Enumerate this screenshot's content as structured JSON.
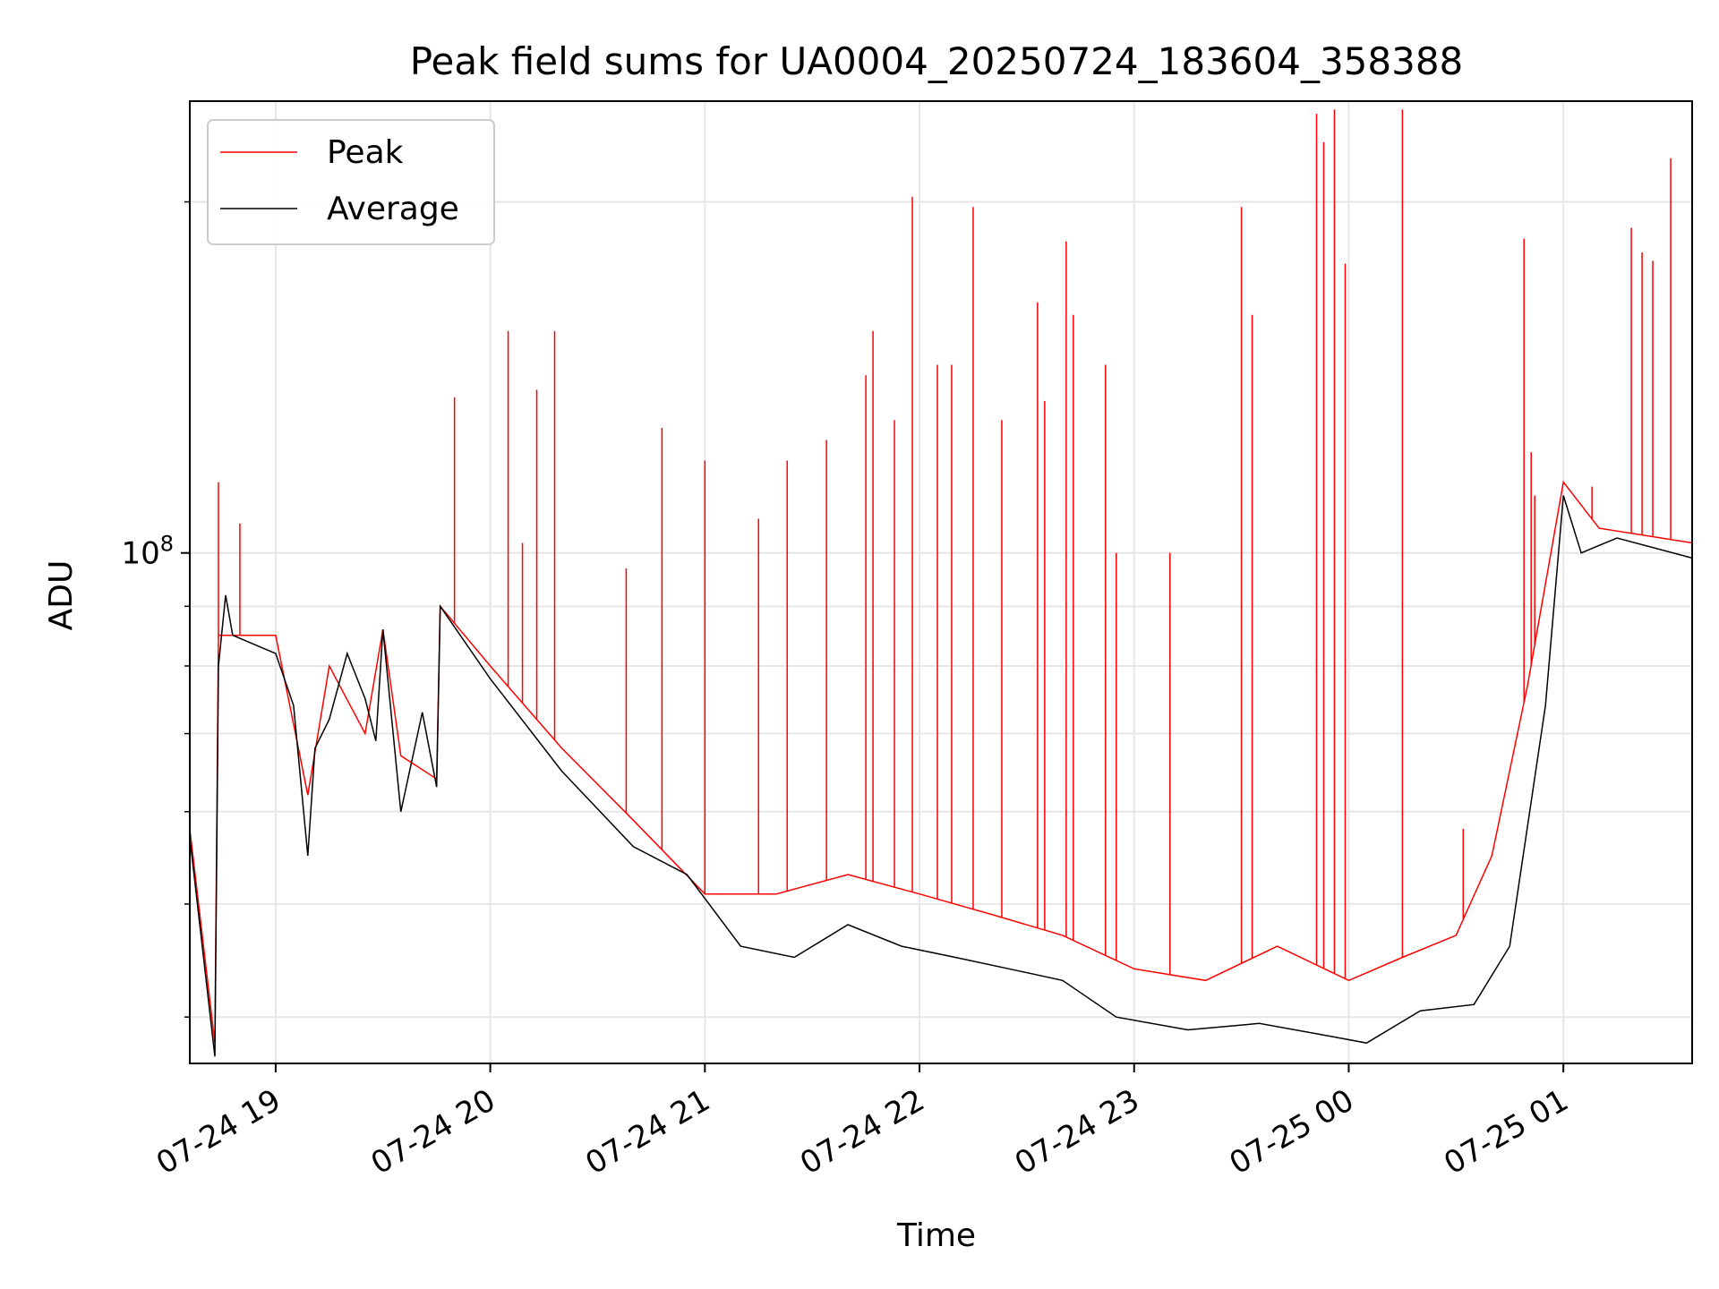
{
  "chart_data": {
    "type": "line",
    "title": "Peak field sums for UA0004_20250724_183604_358388",
    "xlabel": "Time",
    "ylabel": "ADU",
    "y_scale": "log",
    "grid": true,
    "legend_position": "upper-left",
    "x_range": [
      "2025-07-24 18:36",
      "2025-07-25 01:36"
    ],
    "y_range": [
      36500000,
      244000000
    ],
    "x_ticks": [
      "07-24 19",
      "07-24 20",
      "07-24 21",
      "07-24 22",
      "07-24 23",
      "07-25 00",
      "07-25 01"
    ],
    "x_tick_values": [
      "2025-07-24 19:00",
      "2025-07-24 20:00",
      "2025-07-24 21:00",
      "2025-07-24 22:00",
      "2025-07-24 23:00",
      "2025-07-25 00:00",
      "2025-07-25 01:00"
    ],
    "y_ticks": [
      {
        "value": 100000000,
        "base": "10",
        "exp": "8"
      }
    ],
    "y_minor_ticks": [
      40000000,
      50000000,
      60000000,
      70000000,
      80000000,
      90000000,
      200000000
    ],
    "series": [
      {
        "name": "Peak",
        "color": "#ff0000",
        "baseline": [
          [
            "2025-07-24 18:36",
            58000000
          ],
          [
            "2025-07-24 18:43",
            38000000
          ],
          [
            "2025-07-24 18:44",
            85000000
          ],
          [
            "2025-07-24 19:00",
            85000000
          ],
          [
            "2025-07-24 19:09",
            62000000
          ],
          [
            "2025-07-24 19:15",
            80000000
          ],
          [
            "2025-07-24 19:25",
            70000000
          ],
          [
            "2025-07-24 19:30",
            86000000
          ],
          [
            "2025-07-24 19:35",
            67000000
          ],
          [
            "2025-07-24 19:45",
            64000000
          ],
          [
            "2025-07-24 19:46",
            90000000
          ],
          [
            "2025-07-24 20:00",
            80000000
          ],
          [
            "2025-07-24 20:20",
            68000000
          ],
          [
            "2025-07-24 20:40",
            59000000
          ],
          [
            "2025-07-24 21:00",
            51000000
          ],
          [
            "2025-07-24 21:20",
            51000000
          ],
          [
            "2025-07-24 21:40",
            53000000
          ],
          [
            "2025-07-24 22:00",
            51000000
          ],
          [
            "2025-07-24 22:20",
            49000000
          ],
          [
            "2025-07-24 22:40",
            47000000
          ],
          [
            "2025-07-24 23:00",
            44000000
          ],
          [
            "2025-07-24 23:20",
            43000000
          ],
          [
            "2025-07-24 23:40",
            46000000
          ],
          [
            "2025-07-25 00:00",
            43000000
          ],
          [
            "2025-07-25 00:15",
            45000000
          ],
          [
            "2025-07-25 00:30",
            47000000
          ],
          [
            "2025-07-25 00:40",
            55000000
          ],
          [
            "2025-07-25 00:50",
            77000000
          ],
          [
            "2025-07-25 01:00",
            115000000
          ],
          [
            "2025-07-25 01:10",
            105000000
          ],
          [
            "2025-07-25 01:36",
            102000000
          ]
        ],
        "spikes": [
          [
            "2025-07-24 18:44",
            115000000
          ],
          [
            "2025-07-24 18:50",
            106000000
          ],
          [
            "2025-07-24 19:50",
            136000000
          ],
          [
            "2025-07-24 20:05",
            155000000
          ],
          [
            "2025-07-24 20:09",
            102000000
          ],
          [
            "2025-07-24 20:13",
            138000000
          ],
          [
            "2025-07-24 20:18",
            155000000
          ],
          [
            "2025-07-24 20:38",
            97000000
          ],
          [
            "2025-07-24 20:48",
            128000000
          ],
          [
            "2025-07-24 21:00",
            120000000
          ],
          [
            "2025-07-24 21:15",
            107000000
          ],
          [
            "2025-07-24 21:23",
            120000000
          ],
          [
            "2025-07-24 21:34",
            125000000
          ],
          [
            "2025-07-24 21:45",
            142000000
          ],
          [
            "2025-07-24 21:47",
            155000000
          ],
          [
            "2025-07-24 21:53",
            130000000
          ],
          [
            "2025-07-24 21:58",
            202000000
          ],
          [
            "2025-07-24 22:05",
            145000000
          ],
          [
            "2025-07-24 22:09",
            145000000
          ],
          [
            "2025-07-24 22:15",
            198000000
          ],
          [
            "2025-07-24 22:23",
            130000000
          ],
          [
            "2025-07-24 22:33",
            164000000
          ],
          [
            "2025-07-24 22:35",
            135000000
          ],
          [
            "2025-07-24 22:41",
            185000000
          ],
          [
            "2025-07-24 22:43",
            160000000
          ],
          [
            "2025-07-24 22:52",
            145000000
          ],
          [
            "2025-07-24 22:55",
            100000000
          ],
          [
            "2025-07-24 23:10",
            100000000
          ],
          [
            "2025-07-24 23:30",
            198000000
          ],
          [
            "2025-07-24 23:33",
            160000000
          ],
          [
            "2025-07-24 23:51",
            238000000
          ],
          [
            "2025-07-24 23:53",
            225000000
          ],
          [
            "2025-07-24 23:56",
            240000000
          ],
          [
            "2025-07-24 23:59",
            177000000
          ],
          [
            "2025-07-25 00:15",
            240000000
          ],
          [
            "2025-07-25 00:32",
            58000000
          ],
          [
            "2025-07-25 00:49",
            186000000
          ],
          [
            "2025-07-25 00:51",
            122000000
          ],
          [
            "2025-07-25 00:52",
            112000000
          ],
          [
            "2025-07-25 01:08",
            114000000
          ],
          [
            "2025-07-25 01:19",
            190000000
          ],
          [
            "2025-07-25 01:22",
            181000000
          ],
          [
            "2025-07-25 01:25",
            178000000
          ],
          [
            "2025-07-25 01:27",
            103000000
          ],
          [
            "2025-07-25 01:30",
            218000000
          ]
        ]
      },
      {
        "name": "Average",
        "color": "#000000",
        "values": [
          [
            "2025-07-24 18:36",
            57000000
          ],
          [
            "2025-07-24 18:43",
            37000000
          ],
          [
            "2025-07-24 18:44",
            80000000
          ],
          [
            "2025-07-24 18:46",
            92000000
          ],
          [
            "2025-07-24 18:48",
            85000000
          ],
          [
            "2025-07-24 19:00",
            82000000
          ],
          [
            "2025-07-24 19:05",
            74000000
          ],
          [
            "2025-07-24 19:09",
            55000000
          ],
          [
            "2025-07-24 19:11",
            68000000
          ],
          [
            "2025-07-24 19:15",
            72000000
          ],
          [
            "2025-07-24 19:20",
            82000000
          ],
          [
            "2025-07-24 19:25",
            75000000
          ],
          [
            "2025-07-24 19:28",
            69000000
          ],
          [
            "2025-07-24 19:30",
            86000000
          ],
          [
            "2025-07-24 19:35",
            60000000
          ],
          [
            "2025-07-24 19:41",
            73000000
          ],
          [
            "2025-07-24 19:45",
            63000000
          ],
          [
            "2025-07-24 19:46",
            90000000
          ],
          [
            "2025-07-24 20:00",
            78000000
          ],
          [
            "2025-07-24 20:20",
            65000000
          ],
          [
            "2025-07-24 20:40",
            56000000
          ],
          [
            "2025-07-24 20:55",
            53000000
          ],
          [
            "2025-07-24 21:10",
            46000000
          ],
          [
            "2025-07-24 21:25",
            45000000
          ],
          [
            "2025-07-24 21:40",
            48000000
          ],
          [
            "2025-07-24 21:55",
            46000000
          ],
          [
            "2025-07-24 22:10",
            45000000
          ],
          [
            "2025-07-24 22:25",
            44000000
          ],
          [
            "2025-07-24 22:40",
            43000000
          ],
          [
            "2025-07-24 22:55",
            40000000
          ],
          [
            "2025-07-24 23:15",
            39000000
          ],
          [
            "2025-07-24 23:35",
            39500000
          ],
          [
            "2025-07-24 23:55",
            38500000
          ],
          [
            "2025-07-25 00:05",
            38000000
          ],
          [
            "2025-07-25 00:20",
            40500000
          ],
          [
            "2025-07-25 00:35",
            41000000
          ],
          [
            "2025-07-25 00:45",
            46000000
          ],
          [
            "2025-07-25 00:55",
            74000000
          ],
          [
            "2025-07-25 01:00",
            112000000
          ],
          [
            "2025-07-25 01:05",
            100000000
          ],
          [
            "2025-07-25 01:15",
            103000000
          ],
          [
            "2025-07-25 01:36",
            99000000
          ]
        ]
      }
    ]
  }
}
